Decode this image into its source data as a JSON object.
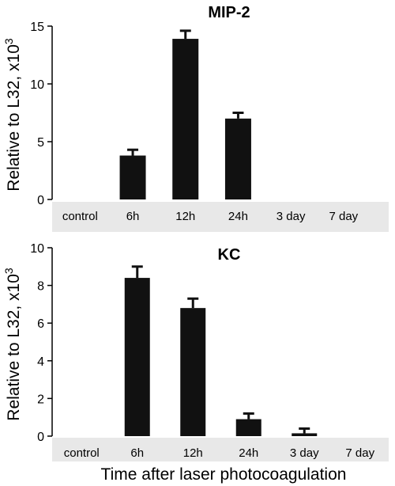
{
  "chart_data": [
    {
      "type": "bar",
      "title": "MIP-2",
      "ylabel": "Relative to L32, x10",
      "ylabel_exponent": "3",
      "categories": [
        "control",
        "6h",
        "12h",
        "24h",
        "3 day",
        "7 day"
      ],
      "values": [
        0,
        3.8,
        13.9,
        7.0,
        0,
        0
      ],
      "errors": [
        0,
        0.5,
        0.7,
        0.5,
        0,
        0
      ],
      "ylim": [
        0,
        15
      ],
      "yticks": [
        0,
        5,
        10,
        15
      ],
      "grid": false
    },
    {
      "type": "bar",
      "title": "KC",
      "ylabel": "Relative to L32, x10",
      "ylabel_exponent": "3",
      "categories": [
        "control",
        "6h",
        "12h",
        "24h",
        "3 day",
        "7 day"
      ],
      "values": [
        0,
        8.4,
        6.8,
        0.9,
        0.15,
        0
      ],
      "errors": [
        0,
        0.6,
        0.5,
        0.3,
        0.25,
        0
      ],
      "ylim": [
        0,
        10
      ],
      "yticks": [
        0,
        2,
        4,
        6,
        8,
        10
      ],
      "grid": false
    }
  ],
  "shared_xlabel": "Time after laser photocoagulation",
  "colors": {
    "bar": "#111111",
    "axis": "#000000",
    "label_strip": "#e8e8e8"
  }
}
